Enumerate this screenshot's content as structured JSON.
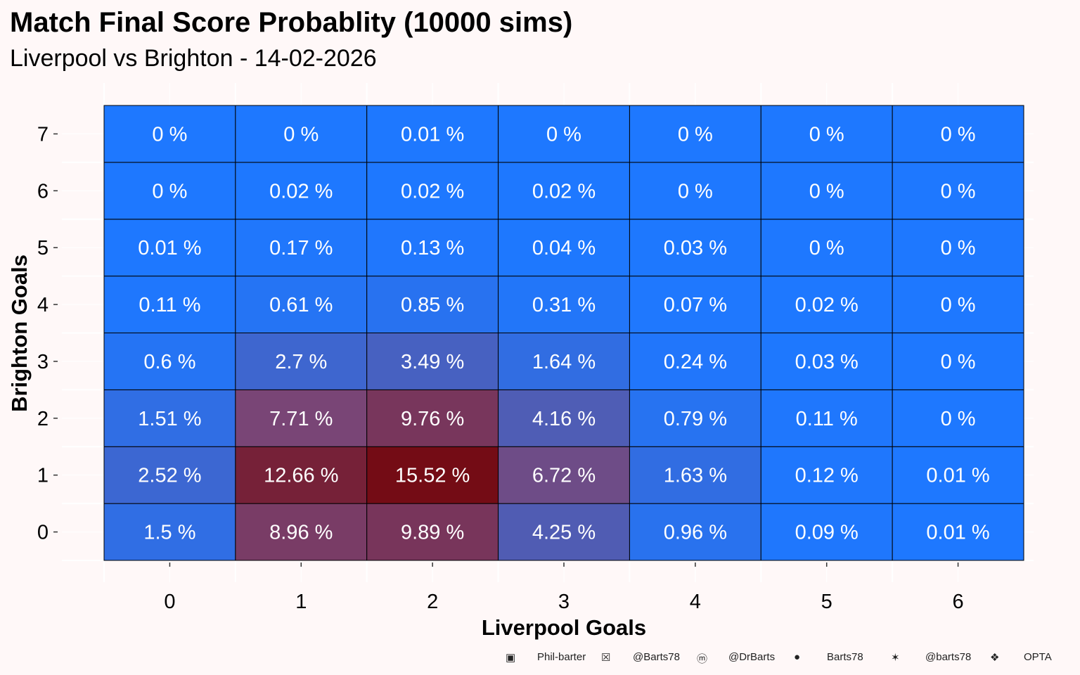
{
  "chart_data": {
    "type": "heatmap",
    "title": "Match Final Score Probablity (10000 sims)",
    "subtitle": "Liverpool vs Brighton - 14-02-2026",
    "xlabel": "Liverpool Goals",
    "ylabel": "Brighton Goals",
    "x_ticks": [
      "0",
      "1",
      "2",
      "3",
      "4",
      "5",
      "6"
    ],
    "y_ticks": [
      "0",
      "1",
      "2",
      "3",
      "4",
      "5",
      "6",
      "7"
    ],
    "value_suffix": " %",
    "values_by_y": [
      [
        1.5,
        8.96,
        9.89,
        4.25,
        0.96,
        0.09,
        0.01
      ],
      [
        2.52,
        12.66,
        15.52,
        6.72,
        1.63,
        0.12,
        0.01
      ],
      [
        1.51,
        7.71,
        9.76,
        4.16,
        0.79,
        0.11,
        0
      ],
      [
        0.6,
        2.7,
        3.49,
        1.64,
        0.24,
        0.03,
        0
      ],
      [
        0.11,
        0.61,
        0.85,
        0.31,
        0.07,
        0.02,
        0
      ],
      [
        0.01,
        0.17,
        0.13,
        0.04,
        0.03,
        0,
        0
      ],
      [
        0,
        0.02,
        0.02,
        0.02,
        0,
        0,
        0
      ],
      [
        0,
        0,
        0.01,
        0,
        0,
        0,
        0
      ]
    ],
    "color_low": "#1E78FF",
    "color_mid": "#7A4575",
    "color_high": "#740C15",
    "grid": true,
    "legend": "none"
  },
  "footer": [
    {
      "icon": "linkedin-icon",
      "text": "Phil-barter"
    },
    {
      "icon": "x-icon",
      "text": "@Barts78"
    },
    {
      "icon": "mastodon-icon",
      "text": "@DrBarts"
    },
    {
      "icon": "github-icon",
      "text": "Barts78"
    },
    {
      "icon": "bluesky-icon",
      "text": "@barts78"
    },
    {
      "icon": "dropbox-icon",
      "text": "OPTA"
    }
  ]
}
